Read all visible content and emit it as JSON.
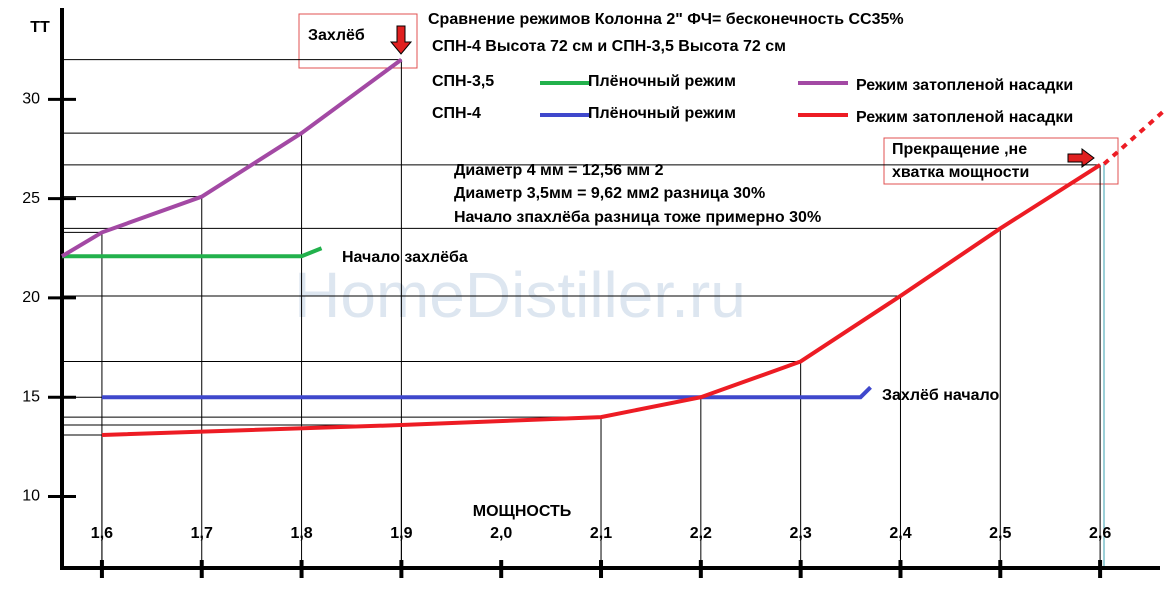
{
  "chart_data": {
    "type": "line",
    "title": [
      "Сравнение режимов  Колонна 2\"  ФЧ=  бесконечность    СС35%",
      "СПН-4 Высота 72 см   и  СПН-3,5 Высота 72 см"
    ],
    "y_label": "ТТ",
    "x_label": "МОЩНОСТЬ",
    "watermark": "HomeDistiller.ru",
    "xlim": [
      1.56,
      2.66
    ],
    "ylim": [
      6.4,
      34.5
    ],
    "xticks": [
      {
        "value": 1.6,
        "label": "1,6"
      },
      {
        "value": 1.7,
        "label": "1,7"
      },
      {
        "value": 1.8,
        "label": "1,8"
      },
      {
        "value": 1.9,
        "label": "1,9"
      },
      {
        "value": 2.0,
        "label": "2,0"
      },
      {
        "value": 2.1,
        "label": "2,1"
      },
      {
        "value": 2.2,
        "label": "2,2"
      },
      {
        "value": 2.3,
        "label": "2,3"
      },
      {
        "value": 2.4,
        "label": "2,4"
      },
      {
        "value": 2.5,
        "label": "2,5"
      },
      {
        "value": 2.6,
        "label": "2,6"
      }
    ],
    "yticks": [
      10,
      15,
      20,
      25,
      30
    ],
    "series": [
      {
        "group": "СПН-3,5",
        "name": "Плёночный режим",
        "color": "#22b14c",
        "x": [
          1.56,
          1.8,
          1.82
        ],
        "values": [
          22.1,
          22.1,
          22.5
        ]
      },
      {
        "group": "СПН-3,5",
        "name": "Режим затопленой насадки",
        "color": "#a349a4",
        "x": [
          1.56,
          1.6,
          1.7,
          1.8,
          1.9
        ],
        "values": [
          22.1,
          23.3,
          25.1,
          28.3,
          32.0
        ]
      },
      {
        "group": "СПН-4",
        "name": "Плёночный режим",
        "color": "#3f48cc",
        "x": [
          1.6,
          2.36,
          2.37
        ],
        "values": [
          15.0,
          15.0,
          15.5
        ]
      },
      {
        "group": "СПН-4",
        "name": "Режим затопленой насадки",
        "color": "#ed1c24",
        "x": [
          1.6,
          1.9,
          2.1,
          2.2,
          2.3,
          2.4,
          2.5,
          2.6
        ],
        "values": [
          13.1,
          13.6,
          14.0,
          15.0,
          16.8,
          20.1,
          23.5,
          26.7
        ]
      }
    ],
    "annotations": [
      "Захлёб",
      "Прекращение  ,не",
      "хватка мощности",
      "Начало захлёба",
      "Захлёб начало",
      "Диаметр  4 мм = 12,56 мм 2",
      "Диаметр 3,5мм = 9,62   мм2  разница 30%",
      "Начало зпахлёба разница  тоже примерно 30%"
    ]
  }
}
